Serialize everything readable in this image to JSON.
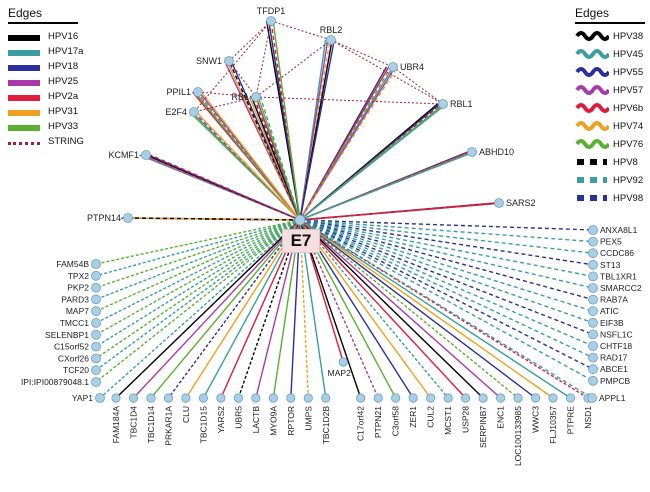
{
  "hub": "E7",
  "legend_left": {
    "title": "Edges",
    "items": [
      {
        "label": "HPV16",
        "color": "#000000",
        "style": "solid"
      },
      {
        "label": "HPV17a",
        "color": "#3a9ea0",
        "style": "solid"
      },
      {
        "label": "HPV18",
        "color": "#2b2f9a",
        "style": "solid"
      },
      {
        "label": "HPV25",
        "color": "#a83aa8",
        "style": "solid"
      },
      {
        "label": "HPV2a",
        "color": "#e01c3c",
        "style": "solid"
      },
      {
        "label": "HPV31",
        "color": "#f0a020",
        "style": "solid"
      },
      {
        "label": "HPV33",
        "color": "#5cb030",
        "style": "solid"
      },
      {
        "label": "STRING",
        "color": "#a0203c",
        "style": "dotted"
      }
    ]
  },
  "legend_right": {
    "title": "Edges",
    "items": [
      {
        "label": "HPV38",
        "color": "#000000",
        "style": "wavy"
      },
      {
        "label": "HPV45",
        "color": "#3a9ea0",
        "style": "wavy"
      },
      {
        "label": "HPV55",
        "color": "#2b2f9a",
        "style": "wavy"
      },
      {
        "label": "HPV57",
        "color": "#a83aa8",
        "style": "wavy"
      },
      {
        "label": "HPV6b",
        "color": "#e01c3c",
        "style": "wavy"
      },
      {
        "label": "HPV74",
        "color": "#f0a020",
        "style": "wavy"
      },
      {
        "label": "HPV76",
        "color": "#5cb030",
        "style": "wavy"
      },
      {
        "label": "HPV8",
        "color": "#000000",
        "style": "dashed"
      },
      {
        "label": "HPV92",
        "color": "#3a9ea0",
        "style": "dashed"
      },
      {
        "label": "HPV98",
        "color": "#2b2f9a",
        "style": "dashed"
      }
    ]
  },
  "nodes_top": [
    "TFDP1",
    "RBL2",
    "UBR4",
    "SNW1",
    "PPIL1",
    "RB1",
    "E2F4",
    "RBL1",
    "KCMF1",
    "ABHD10",
    "SARS2",
    "PTPN14"
  ],
  "nodes_left": [
    "FAM54B",
    "TPX2",
    "PKP2",
    "PARD3",
    "MAP7",
    "TMCC1",
    "SELENBP1",
    "C15orf52",
    "CXorf26",
    "TCF20",
    "IPI:IPI00879048.1",
    "YAP1"
  ],
  "nodes_bottom": [
    "FAM184A",
    "TBC1D4",
    "TBC1D14",
    "PRKAR1A",
    "CLU",
    "TBC1D15",
    "YARS2",
    "UBR5",
    "LACTB",
    "MYO9A",
    "RPTOR",
    "UMPS",
    "TBC1D2B",
    "MAP2",
    "C17orf42",
    "PTPN21",
    "C3orf58",
    "ZER1",
    "CUL2",
    "MCST1",
    "USP28",
    "SERPINB7",
    "ENC1",
    "LOC100133985",
    "WWC3",
    "FLJ10357",
    "PTPRE",
    "NSD1"
  ],
  "nodes_right": [
    "ANXA8L1",
    "PEX5",
    "CCDC86",
    "ST13",
    "TBL1XR1",
    "SMARCC2",
    "RAB7A",
    "ATIC",
    "EIF3B",
    "NSFL1C",
    "CHTF18",
    "RAD17",
    "ABCE1",
    "PMPCB",
    "APPL1"
  ]
}
